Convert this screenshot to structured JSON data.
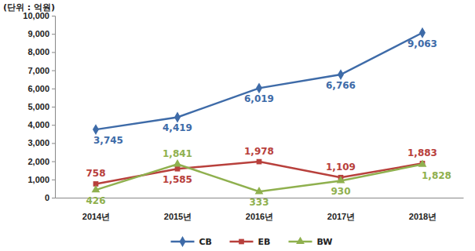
{
  "chart_data": {
    "type": "line",
    "y_label": "(단위 : 억원)",
    "categories": [
      "2014년",
      "2015년",
      "2016년",
      "2017년",
      "2018년"
    ],
    "series": [
      {
        "name": "CB",
        "color": "#3e6ba8",
        "marker": "diamond",
        "values": [
          3745,
          4419,
          6019,
          6766,
          9063
        ],
        "value_labels": [
          "3,745",
          "4,419",
          "6,019",
          "6,766",
          "9,063"
        ]
      },
      {
        "name": "EB",
        "color": "#b8403c",
        "marker": "square",
        "values": [
          758,
          1585,
          1978,
          1109,
          1883
        ],
        "value_labels": [
          "758",
          "1,585",
          "1,978",
          "1,109",
          "1,883"
        ]
      },
      {
        "name": "BW",
        "color": "#8fb04e",
        "marker": "triangle",
        "values": [
          426,
          1841,
          333,
          930,
          1828
        ],
        "value_labels": [
          "426",
          "1,841",
          "333",
          "930",
          "1,828"
        ]
      }
    ],
    "ylim": [
      0,
      10000
    ],
    "yticks": [
      0,
      {
        "value": 1000,
        "label": "1,000"
      },
      {
        "value": 2000,
        "label": "2,000"
      },
      {
        "value": 3000,
        "label": "3,000"
      },
      {
        "value": 4000,
        "label": "4,000"
      },
      {
        "value": 5000,
        "label": "5,000"
      },
      {
        "value": 6000,
        "label": "6,000"
      },
      {
        "value": 7000,
        "label": "7,000"
      },
      {
        "value": 8000,
        "label": "8,000"
      },
      {
        "value": 9000,
        "label": "9,000"
      },
      {
        "value": 10000,
        "label": "10,000"
      }
    ],
    "grid": false,
    "legend": "bottom",
    "data_labels": true
  }
}
